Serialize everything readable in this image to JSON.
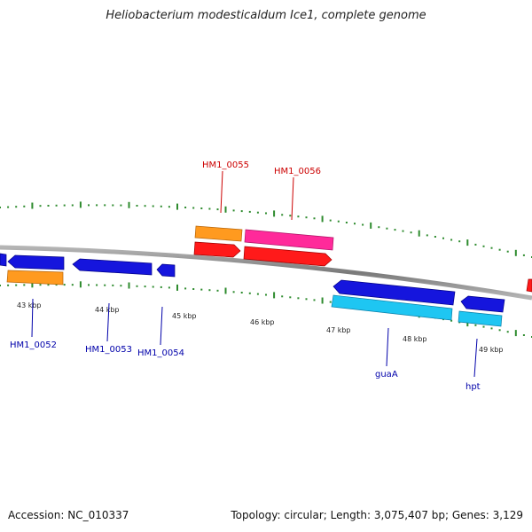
{
  "title": "Heliobacterium modesticaldum Ice1, complete genome",
  "footer": {
    "accession": "Accession: NC_010337",
    "summary": "Topology: circular; Length: 3,075,407 bp; Genes: 3,129"
  },
  "colors": {
    "backbone": "#8a8a8a",
    "tick": "#2e8b2e",
    "forward_label": "#cc0000",
    "reverse_label": "#0000aa",
    "blue": "#1515dd",
    "orange": "#ff9a1f",
    "red": "#ff1a1a",
    "magenta": "#ff2a9a",
    "cyan": "#1ec6f2"
  },
  "scale_labels": [
    {
      "text": "43 kbp",
      "kbp": 43
    },
    {
      "text": "44 kbp",
      "kbp": 44
    },
    {
      "text": "45 kbp",
      "kbp": 45
    },
    {
      "text": "46 kbp",
      "kbp": 46
    },
    {
      "text": "47 kbp",
      "kbp": 47
    },
    {
      "text": "48 kbp",
      "kbp": 48
    },
    {
      "text": "49 kbp",
      "kbp": 49
    }
  ],
  "forward_genes": [
    {
      "name": "HM1_0055"
    },
    {
      "name": "HM1_0056"
    }
  ],
  "reverse_genes": [
    {
      "name": "HM1_0052"
    },
    {
      "name": "HM1_0053"
    },
    {
      "name": "HM1_0054"
    },
    {
      "name": "guaA"
    },
    {
      "name": "hpt"
    }
  ]
}
